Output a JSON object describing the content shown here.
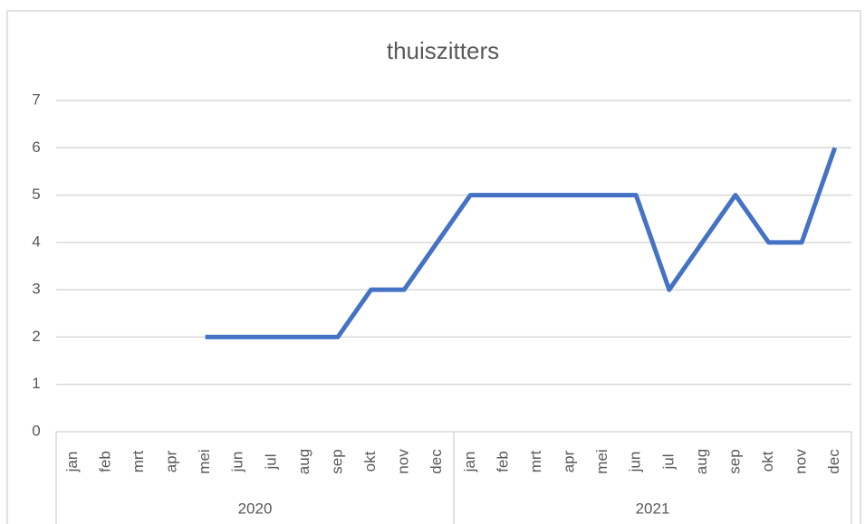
{
  "chart_data": {
    "type": "line",
    "title": "thuiszitters",
    "categories": [
      "jan",
      "feb",
      "mrt",
      "apr",
      "mei",
      "jun",
      "jul",
      "aug",
      "sep",
      "okt",
      "nov",
      "dec",
      "jan",
      "feb",
      "mrt",
      "apr",
      "mei",
      "jun",
      "jul",
      "aug",
      "sep",
      "okt",
      "nov",
      "dec"
    ],
    "category_groups": [
      "2020",
      "2021"
    ],
    "series": [
      {
        "name": "thuiszitters",
        "color": "#4472c4",
        "values": [
          null,
          null,
          null,
          null,
          2,
          2,
          2,
          2,
          2,
          3,
          3,
          4,
          5,
          5,
          5,
          5,
          5,
          5,
          3,
          4,
          5,
          4,
          4,
          6
        ]
      }
    ],
    "ylim": [
      0,
      7
    ],
    "yticks": [
      0,
      1,
      2,
      3,
      4,
      5,
      6,
      7
    ],
    "grid": true
  }
}
